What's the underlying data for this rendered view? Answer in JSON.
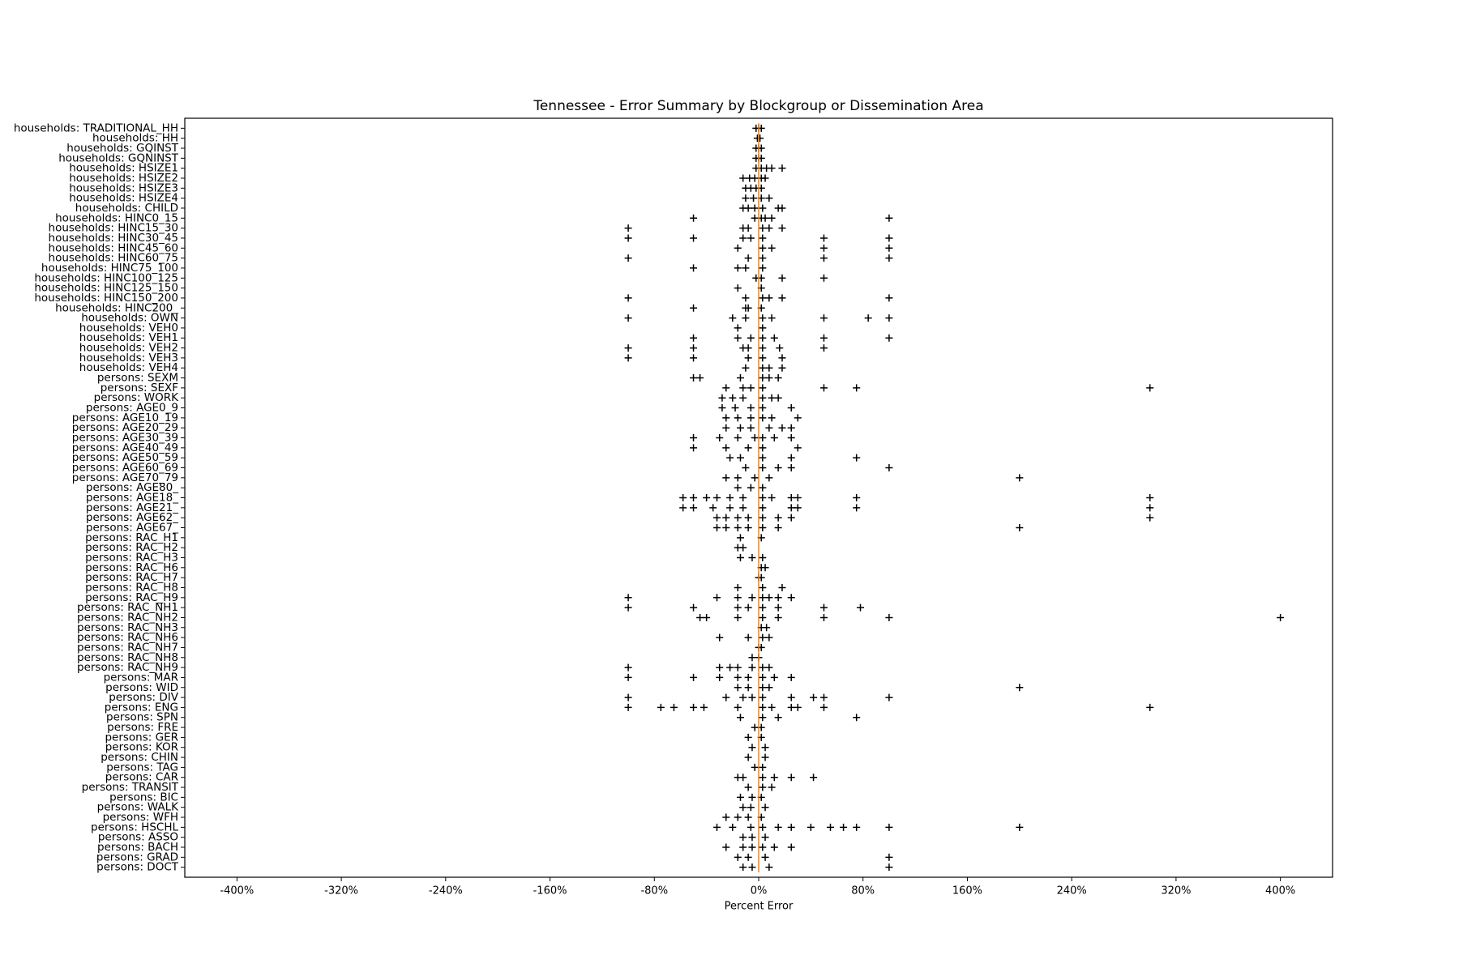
{
  "chart_data": {
    "type": "box",
    "title": "Tennessee - Error Summary by Blockgroup or Dissemination Area",
    "xlabel": "Percent Error",
    "xlim": [
      -440,
      440
    ],
    "xticks": [
      {
        "value": -400,
        "label": "-400%"
      },
      {
        "value": -320,
        "label": "-320%"
      },
      {
        "value": -240,
        "label": "-240%"
      },
      {
        "value": -160,
        "label": "-160%"
      },
      {
        "value": -80,
        "label": "-80%"
      },
      {
        "value": 0,
        "label": "0%"
      },
      {
        "value": 80,
        "label": "80%"
      },
      {
        "value": 160,
        "label": "160%"
      },
      {
        "value": 240,
        "label": "240%"
      },
      {
        "value": 320,
        "label": "320%"
      },
      {
        "value": 400,
        "label": "400%"
      }
    ],
    "median_color": "#ff7f0e",
    "marker_color": "#000000",
    "categories": [
      "households: TRADITIONAL_HH",
      "households: HH",
      "households: GQINST",
      "households: GQNINST",
      "households: HSIZE1",
      "households: HSIZE2",
      "households: HSIZE3",
      "households: HSIZE4",
      "households: CHILD",
      "households: HINC0_15",
      "households: HINC15_30",
      "households: HINC30_45",
      "households: HINC45_60",
      "households: HINC60_75",
      "households: HINC75_100",
      "households: HINC100_125",
      "households: HINC125_150",
      "households: HINC150_200",
      "households: HINC200_",
      "households: OWN",
      "households: VEH0",
      "households: VEH1",
      "households: VEH2",
      "households: VEH3",
      "households: VEH4",
      "persons: SEXM",
      "persons: SEXF",
      "persons: WORK",
      "persons: AGE0_9",
      "persons: AGE10_19",
      "persons: AGE20_29",
      "persons: AGE30_39",
      "persons: AGE40_49",
      "persons: AGE50_59",
      "persons: AGE60_69",
      "persons: AGE70_79",
      "persons: AGE80_",
      "persons: AGE18_",
      "persons: AGE21_",
      "persons: AGE62_",
      "persons: AGE67_",
      "persons: RAC_H1",
      "persons: RAC_H2",
      "persons: RAC_H3",
      "persons: RAC_H6",
      "persons: RAC_H7",
      "persons: RAC_H8",
      "persons: RAC_H9",
      "persons: RAC_NH1",
      "persons: RAC_NH2",
      "persons: RAC_NH3",
      "persons: RAC_NH6",
      "persons: RAC_NH7",
      "persons: RAC_NH8",
      "persons: RAC_NH9",
      "persons: MAR",
      "persons: WID",
      "persons: DIV",
      "persons: ENG",
      "persons: SPN",
      "persons: FRE",
      "persons: GER",
      "persons: KOR",
      "persons: CHIN",
      "persons: TAG",
      "persons: CAR",
      "persons: TRANSIT",
      "persons: BIC",
      "persons: WALK",
      "persons: WFH",
      "persons: HSCHL",
      "persons: ASSO",
      "persons: BACH",
      "persons: GRAD",
      "persons: DOCT"
    ],
    "medians": [
      0,
      0,
      0,
      0,
      0,
      0,
      0,
      0,
      0,
      0,
      0,
      0,
      0,
      0,
      0,
      0,
      0,
      0,
      0,
      0,
      0,
      0,
      0,
      0,
      0,
      0,
      0,
      0,
      0,
      0,
      0,
      0,
      0,
      0,
      0,
      0,
      0,
      0,
      0,
      0,
      0,
      0,
      0,
      0,
      0,
      0,
      0,
      0,
      0,
      0,
      0,
      0,
      0,
      0,
      0,
      0,
      0,
      0,
      0,
      0,
      0,
      0,
      0,
      0,
      0,
      0,
      0,
      0,
      0,
      0,
      0,
      0,
      0,
      0,
      0
    ],
    "outliers": [
      [
        -2,
        0,
        2
      ],
      [
        -1,
        1
      ],
      [
        -2,
        0,
        2
      ],
      [
        -2,
        0,
        2
      ],
      [
        -2,
        2,
        6,
        10,
        18
      ],
      [
        -12,
        -7,
        -3,
        2,
        5
      ],
      [
        -10,
        -6,
        -2,
        2
      ],
      [
        -10,
        -4,
        2,
        8
      ],
      [
        -12,
        -8,
        -3,
        3,
        15,
        18
      ],
      [
        -50,
        -3,
        2,
        5,
        10,
        100
      ],
      [
        -100,
        -12,
        -8,
        3,
        8,
        18
      ],
      [
        -100,
        -50,
        -12,
        -6,
        3,
        50,
        100
      ],
      [
        -16,
        3,
        10,
        50,
        100
      ],
      [
        -100,
        -8,
        3,
        50,
        100
      ],
      [
        -50,
        -16,
        -10,
        3
      ],
      [
        -2,
        2,
        18,
        50
      ],
      [
        -16,
        2
      ],
      [
        -100,
        -10,
        3,
        8,
        18,
        100
      ],
      [
        -50,
        -10,
        -8,
        2
      ],
      [
        -100,
        -20,
        -10,
        3,
        10,
        50,
        84,
        100
      ],
      [
        -16,
        3
      ],
      [
        -50,
        -16,
        -6,
        3,
        12,
        50,
        100
      ],
      [
        -100,
        -50,
        -12,
        -8,
        3,
        16,
        50
      ],
      [
        -100,
        -50,
        -8,
        3,
        18
      ],
      [
        -10,
        3,
        8,
        18
      ],
      [
        -50,
        -45,
        -14,
        3,
        8,
        15
      ],
      [
        -25,
        -12,
        -6,
        3,
        50,
        75,
        300
      ],
      [
        -28,
        -20,
        -12,
        3,
        10,
        15
      ],
      [
        -28,
        -18,
        -6,
        3,
        25
      ],
      [
        -25,
        -16,
        -6,
        3,
        10,
        30
      ],
      [
        -25,
        -14,
        -6,
        8,
        18,
        25
      ],
      [
        -50,
        -30,
        -16,
        -3,
        3,
        12,
        25
      ],
      [
        -50,
        -25,
        -8,
        3,
        30
      ],
      [
        -22,
        -14,
        3,
        25,
        75
      ],
      [
        -10,
        3,
        15,
        25,
        100
      ],
      [
        -25,
        -16,
        -3,
        8,
        200
      ],
      [
        -16,
        -6,
        3
      ],
      [
        -58,
        -50,
        -40,
        -32,
        -22,
        -12,
        3,
        10,
        25,
        30,
        75,
        300
      ],
      [
        -58,
        -50,
        -35,
        -22,
        -12,
        3,
        25,
        30,
        75,
        300
      ],
      [
        -32,
        -25,
        -16,
        -8,
        3,
        15,
        25,
        300
      ],
      [
        -32,
        -25,
        -16,
        -8,
        3,
        15,
        200
      ],
      [
        -14,
        2
      ],
      [
        -16,
        -12
      ],
      [
        -14,
        -5,
        3
      ],
      [
        2,
        5
      ],
      [
        0,
        2
      ],
      [
        -16,
        3,
        18
      ],
      [
        -100,
        -32,
        -16,
        -5,
        3,
        8,
        15,
        25
      ],
      [
        -100,
        -50,
        -16,
        -8,
        3,
        15,
        50,
        78
      ],
      [
        -45,
        -40,
        -16,
        3,
        15,
        50,
        100,
        400
      ],
      [
        2,
        6
      ],
      [
        -30,
        -8,
        3,
        8
      ],
      [
        0,
        2
      ],
      [
        -5,
        0
      ],
      [
        -100,
        -30,
        -22,
        -16,
        -5,
        3,
        8
      ],
      [
        -100,
        -50,
        -30,
        -16,
        -8,
        3,
        12,
        25
      ],
      [
        -16,
        -8,
        3,
        8,
        200
      ],
      [
        -100,
        -25,
        -12,
        -5,
        3,
        25,
        42,
        50,
        100
      ],
      [
        -100,
        -75,
        -65,
        -50,
        -42,
        -16,
        3,
        10,
        25,
        30,
        50,
        300
      ],
      [
        -14,
        3,
        15,
        75
      ],
      [
        -3,
        2
      ],
      [
        -8,
        2
      ],
      [
        -5,
        5
      ],
      [
        -8,
        5
      ],
      [
        -3,
        3
      ],
      [
        -16,
        -12,
        3,
        12,
        25,
        42
      ],
      [
        -8,
        3,
        10
      ],
      [
        -14,
        -5,
        2
      ],
      [
        -12,
        -6,
        5
      ],
      [
        -25,
        -16,
        -8,
        2
      ],
      [
        -32,
        -20,
        -6,
        3,
        15,
        25,
        40,
        55,
        65,
        75,
        100,
        200
      ],
      [
        -12,
        -5,
        5
      ],
      [
        -25,
        -12,
        -5,
        3,
        12,
        25
      ],
      [
        -16,
        -8,
        5,
        100
      ],
      [
        -12,
        -5,
        8,
        100
      ]
    ]
  }
}
